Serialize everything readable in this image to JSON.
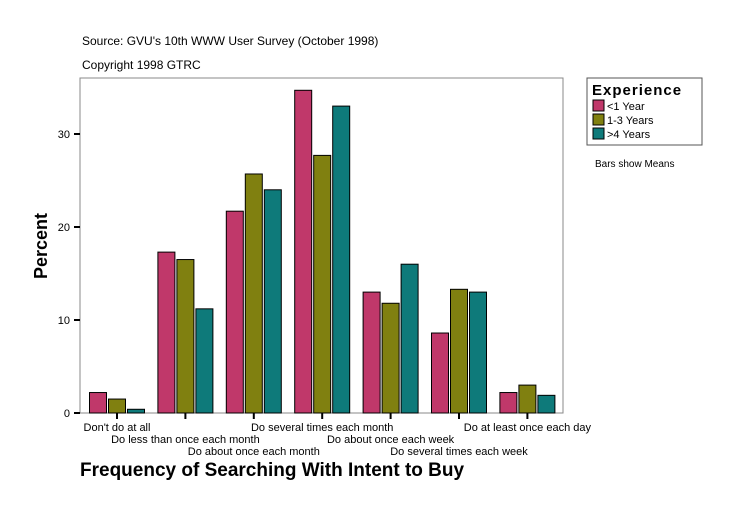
{
  "chart_data": {
    "type": "bar",
    "source": "Source: GVU's 10th WWW User Survey (October 1998)",
    "copyright": "Copyright 1998 GTRC",
    "xlabel": "Frequency of Searching With Intent to Buy",
    "ylabel": "Percent",
    "ylim": [
      0,
      36
    ],
    "yticks": [
      0,
      10,
      20,
      30
    ],
    "grid": false,
    "legend_position": "right",
    "legend_title": "Experience",
    "note": "Bars show Means",
    "categories": [
      "Don't do at all",
      "Do less than once each month",
      "Do about once each month",
      "Do several times each month",
      "Do about once each week",
      "Do several times each week",
      "Do at least once each day"
    ],
    "series": [
      {
        "name": "<1 Year",
        "color": "#c0386a",
        "values": [
          2.2,
          17.3,
          21.7,
          34.7,
          13.0,
          8.6,
          2.2
        ]
      },
      {
        "name": "1-3 Years",
        "color": "#808010",
        "values": [
          1.5,
          16.5,
          25.7,
          27.7,
          11.8,
          13.3,
          3.0
        ]
      },
      {
        "name": ">4 Years",
        "color": "#0e7a7a",
        "values": [
          0.4,
          11.2,
          24.0,
          33.0,
          16.0,
          13.0,
          1.9
        ]
      }
    ]
  }
}
